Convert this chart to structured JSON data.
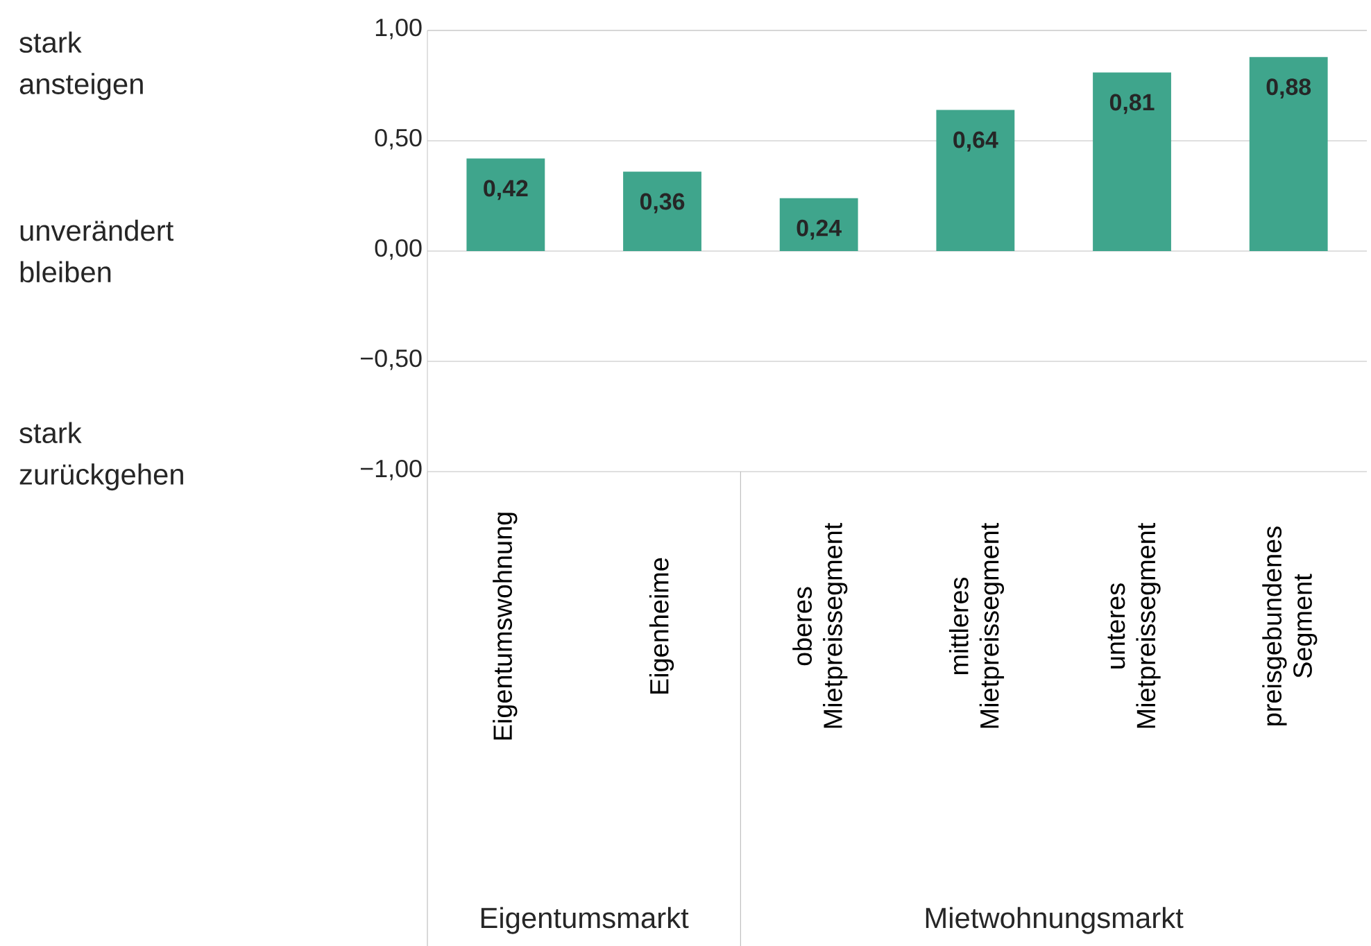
{
  "chart_data": {
    "type": "bar",
    "categories": [
      "Eigentumswohnung",
      "Eigenheime",
      "oberes Mietpreissegment",
      "mittleres Mietpreissegment",
      "unteres Mietpreissegment",
      "preisgebundenes Segment"
    ],
    "values": [
      0.42,
      0.36,
      0.24,
      0.64,
      0.81,
      0.88
    ],
    "value_labels": [
      "0,42",
      "0,36",
      "0,24",
      "0,64",
      "0,81",
      "0,88"
    ],
    "color": "#3fa58c",
    "ylim": [
      -1,
      1
    ],
    "yticks": [
      {
        "value": -1,
        "label": "−1,00"
      },
      {
        "value": -0.5,
        "label": "−0,50"
      },
      {
        "value": 0,
        "label": "0,00"
      },
      {
        "value": 0.5,
        "label": "0,50"
      },
      {
        "value": 1,
        "label": "1,00"
      }
    ],
    "grid": "y",
    "annotations": [
      "stark ansteigen",
      "unverändert bleiben",
      "stark zurückgehen",
      "Eigentumsmarkt",
      "Mietwohnungsmarkt"
    ]
  }
}
